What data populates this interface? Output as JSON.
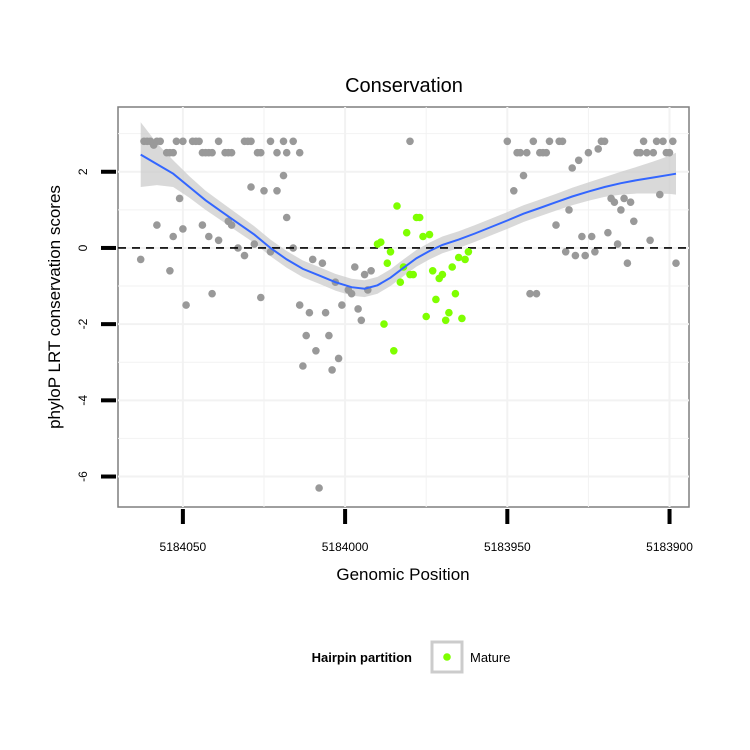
{
  "chart_data": {
    "type": "scatter",
    "title": "Conservation",
    "xlabel": "Genomic Position",
    "ylabel": "phyloP LRT conservation scores",
    "x_reversed": true,
    "xlim": [
      5184070,
      5183894
    ],
    "ylim": [
      -6.8,
      3.7
    ],
    "x_ticks": [
      "5184050",
      "5184000",
      "5183950",
      "5183900"
    ],
    "x_tick_values": [
      5184050,
      5184000,
      5183950,
      5183900
    ],
    "y_ticks": [
      "2",
      "0",
      "-2",
      "-4",
      "-6"
    ],
    "y_tick_values": [
      2,
      0,
      -2,
      -4,
      -6
    ],
    "grid": true,
    "reference_line": {
      "y": 0,
      "style": "dashed"
    },
    "legend": {
      "title": "Hairpin partition",
      "position": "bottom",
      "entries": [
        "Mature"
      ]
    },
    "colors": {
      "background_points": "#999999",
      "mature": "#7fff00",
      "smooth_line": "#3366ff",
      "ci_band": "#cccccc"
    },
    "series": [
      {
        "partition": "other",
        "points": [
          [
            5184062,
            2.8
          ],
          [
            5184061,
            2.8
          ],
          [
            5184060,
            2.8
          ],
          [
            5184059,
            2.7
          ],
          [
            5184058,
            2.8
          ],
          [
            5184057,
            2.8
          ],
          [
            5184055,
            2.5
          ],
          [
            5184054,
            2.5
          ],
          [
            5184053,
            2.5
          ],
          [
            5184052,
            2.8
          ],
          [
            5184050,
            2.8
          ],
          [
            5184047,
            2.8
          ],
          [
            5184046,
            2.8
          ],
          [
            5184045,
            2.8
          ],
          [
            5184044,
            2.5
          ],
          [
            5184043,
            2.5
          ],
          [
            5184042,
            2.5
          ],
          [
            5184041,
            2.5
          ],
          [
            5184039,
            2.8
          ],
          [
            5184037,
            2.5
          ],
          [
            5184036,
            2.5
          ],
          [
            5184035,
            2.5
          ],
          [
            5184031,
            2.8
          ],
          [
            5184030,
            2.8
          ],
          [
            5184029,
            2.8
          ],
          [
            5184027,
            2.5
          ],
          [
            5184026,
            2.5
          ],
          [
            5184023,
            2.8
          ],
          [
            5184021,
            2.5
          ],
          [
            5184019,
            2.8
          ],
          [
            5184018,
            2.5
          ],
          [
            5184016,
            2.8
          ],
          [
            5184014,
            2.5
          ],
          [
            5183980,
            2.8
          ],
          [
            5184063,
            -0.3
          ],
          [
            5184058,
            0.6
          ],
          [
            5184054,
            -0.6
          ],
          [
            5184053,
            0.3
          ],
          [
            5184051,
            1.3
          ],
          [
            5184050,
            0.5
          ],
          [
            5184049,
            -1.5
          ],
          [
            5184044,
            0.6
          ],
          [
            5184042,
            0.3
          ],
          [
            5184041,
            -1.2
          ],
          [
            5184039,
            0.2
          ],
          [
            5184036,
            0.7
          ],
          [
            5184035,
            0.6
          ],
          [
            5184033,
            0.0
          ],
          [
            5184031,
            -0.2
          ],
          [
            5184029,
            1.6
          ],
          [
            5184028,
            0.1
          ],
          [
            5184026,
            -1.3
          ],
          [
            5184025,
            1.5
          ],
          [
            5184023,
            -0.1
          ],
          [
            5184021,
            1.5
          ],
          [
            5184019,
            1.9
          ],
          [
            5184018,
            0.8
          ],
          [
            5184016,
            0.0
          ],
          [
            5184014,
            -1.5
          ],
          [
            5184013,
            -3.1
          ],
          [
            5184012,
            -2.3
          ],
          [
            5184011,
            -1.7
          ],
          [
            5184010,
            -0.3
          ],
          [
            5184009,
            -2.7
          ],
          [
            5184008,
            -6.3
          ],
          [
            5184007,
            -0.4
          ],
          [
            5184006,
            -1.7
          ],
          [
            5184005,
            -2.3
          ],
          [
            5184004,
            -3.2
          ],
          [
            5184003,
            -0.9
          ],
          [
            5184002,
            -2.9
          ],
          [
            5184001,
            -1.5
          ],
          [
            5183999,
            -1.1
          ],
          [
            5183998,
            -1.2
          ],
          [
            5183997,
            -0.5
          ],
          [
            5183996,
            -1.6
          ],
          [
            5183995,
            -1.9
          ],
          [
            5183994,
            -0.7
          ],
          [
            5183993,
            -1.1
          ],
          [
            5183992,
            -0.6
          ],
          [
            5183950,
            2.8
          ],
          [
            5183948,
            1.5
          ],
          [
            5183947,
            2.5
          ],
          [
            5183946,
            2.5
          ],
          [
            5183945,
            1.9
          ],
          [
            5183944,
            2.5
          ],
          [
            5183943,
            -1.2
          ],
          [
            5183942,
            2.8
          ],
          [
            5183941,
            -1.2
          ],
          [
            5183940,
            2.5
          ],
          [
            5183939,
            2.5
          ],
          [
            5183938,
            2.5
          ],
          [
            5183937,
            2.8
          ],
          [
            5183935,
            0.6
          ],
          [
            5183934,
            2.8
          ],
          [
            5183933,
            2.8
          ],
          [
            5183932,
            -0.1
          ],
          [
            5183931,
            1.0
          ],
          [
            5183930,
            2.1
          ],
          [
            5183929,
            -0.2
          ],
          [
            5183928,
            2.3
          ],
          [
            5183927,
            0.3
          ],
          [
            5183926,
            -0.2
          ],
          [
            5183925,
            2.5
          ],
          [
            5183924,
            0.3
          ],
          [
            5183923,
            -0.1
          ],
          [
            5183922,
            2.6
          ],
          [
            5183921,
            2.8
          ],
          [
            5183920,
            2.8
          ],
          [
            5183919,
            0.4
          ],
          [
            5183918,
            1.3
          ],
          [
            5183917,
            1.2
          ],
          [
            5183916,
            0.1
          ],
          [
            5183915,
            1.0
          ],
          [
            5183914,
            1.3
          ],
          [
            5183913,
            -0.4
          ],
          [
            5183912,
            1.2
          ],
          [
            5183911,
            0.7
          ],
          [
            5183910,
            2.5
          ],
          [
            5183909,
            2.5
          ],
          [
            5183908,
            2.8
          ],
          [
            5183907,
            2.5
          ],
          [
            5183906,
            0.2
          ],
          [
            5183905,
            2.5
          ],
          [
            5183904,
            2.8
          ],
          [
            5183903,
            1.4
          ],
          [
            5183902,
            2.8
          ],
          [
            5183901,
            2.5
          ],
          [
            5183900,
            2.5
          ],
          [
            5183899,
            2.8
          ],
          [
            5183898,
            -0.4
          ]
        ]
      },
      {
        "partition": "Mature",
        "points": [
          [
            5183990,
            0.1
          ],
          [
            5183989,
            0.15
          ],
          [
            5183988,
            -2.0
          ],
          [
            5183987,
            -0.4
          ],
          [
            5183986,
            -0.1
          ],
          [
            5183985,
            -2.7
          ],
          [
            5183984,
            1.1
          ],
          [
            5183983,
            -0.9
          ],
          [
            5183982,
            -0.5
          ],
          [
            5183981,
            0.4
          ],
          [
            5183980,
            -0.7
          ],
          [
            5183979,
            -0.7
          ],
          [
            5183978,
            0.8
          ],
          [
            5183977,
            0.8
          ],
          [
            5183976,
            0.3
          ],
          [
            5183975,
            -1.8
          ],
          [
            5183974,
            0.35
          ],
          [
            5183973,
            -0.6
          ],
          [
            5183972,
            -1.35
          ],
          [
            5183971,
            -0.8
          ],
          [
            5183970,
            -0.7
          ],
          [
            5183969,
            -1.9
          ],
          [
            5183968,
            -1.7
          ],
          [
            5183967,
            -0.5
          ],
          [
            5183966,
            -1.2
          ],
          [
            5183965,
            -0.25
          ],
          [
            5183964,
            -1.85
          ],
          [
            5183963,
            -0.3
          ],
          [
            5183962,
            -0.1
          ]
        ]
      }
    ],
    "smooth_fit": {
      "method": "loess",
      "points": [
        [
          5184063,
          2.45
        ],
        [
          5184058,
          2.2
        ],
        [
          5184053,
          1.95
        ],
        [
          5184048,
          1.6
        ],
        [
          5184043,
          1.25
        ],
        [
          5184038,
          0.95
        ],
        [
          5184033,
          0.65
        ],
        [
          5184028,
          0.35
        ],
        [
          5184023,
          0.0
        ],
        [
          5184018,
          -0.3
        ],
        [
          5184013,
          -0.55
        ],
        [
          5184008,
          -0.72
        ],
        [
          5184003,
          -0.9
        ],
        [
          5183998,
          -1.03
        ],
        [
          5183994,
          -1.07
        ],
        [
          5183990,
          -0.98
        ],
        [
          5183986,
          -0.78
        ],
        [
          5183982,
          -0.52
        ],
        [
          5183978,
          -0.27
        ],
        [
          5183974,
          -0.08
        ],
        [
          5183970,
          0.08
        ],
        [
          5183965,
          0.22
        ],
        [
          5183960,
          0.38
        ],
        [
          5183955,
          0.55
        ],
        [
          5183950,
          0.72
        ],
        [
          5183945,
          0.9
        ],
        [
          5183940,
          1.05
        ],
        [
          5183935,
          1.2
        ],
        [
          5183930,
          1.35
        ],
        [
          5183925,
          1.48
        ],
        [
          5183920,
          1.6
        ],
        [
          5183915,
          1.7
        ],
        [
          5183910,
          1.78
        ],
        [
          5183905,
          1.85
        ],
        [
          5183900,
          1.92
        ],
        [
          5183898,
          1.95
        ]
      ],
      "ci_halfwidth": [
        0.85,
        0.55,
        0.35,
        0.28,
        0.25,
        0.24,
        0.23,
        0.22,
        0.22,
        0.22,
        0.22,
        0.22,
        0.22,
        0.22,
        0.22,
        0.22,
        0.22,
        0.22,
        0.22,
        0.22,
        0.22,
        0.22,
        0.22,
        0.22,
        0.22,
        0.22,
        0.22,
        0.22,
        0.23,
        0.24,
        0.26,
        0.3,
        0.35,
        0.42,
        0.5,
        0.55
      ]
    }
  }
}
